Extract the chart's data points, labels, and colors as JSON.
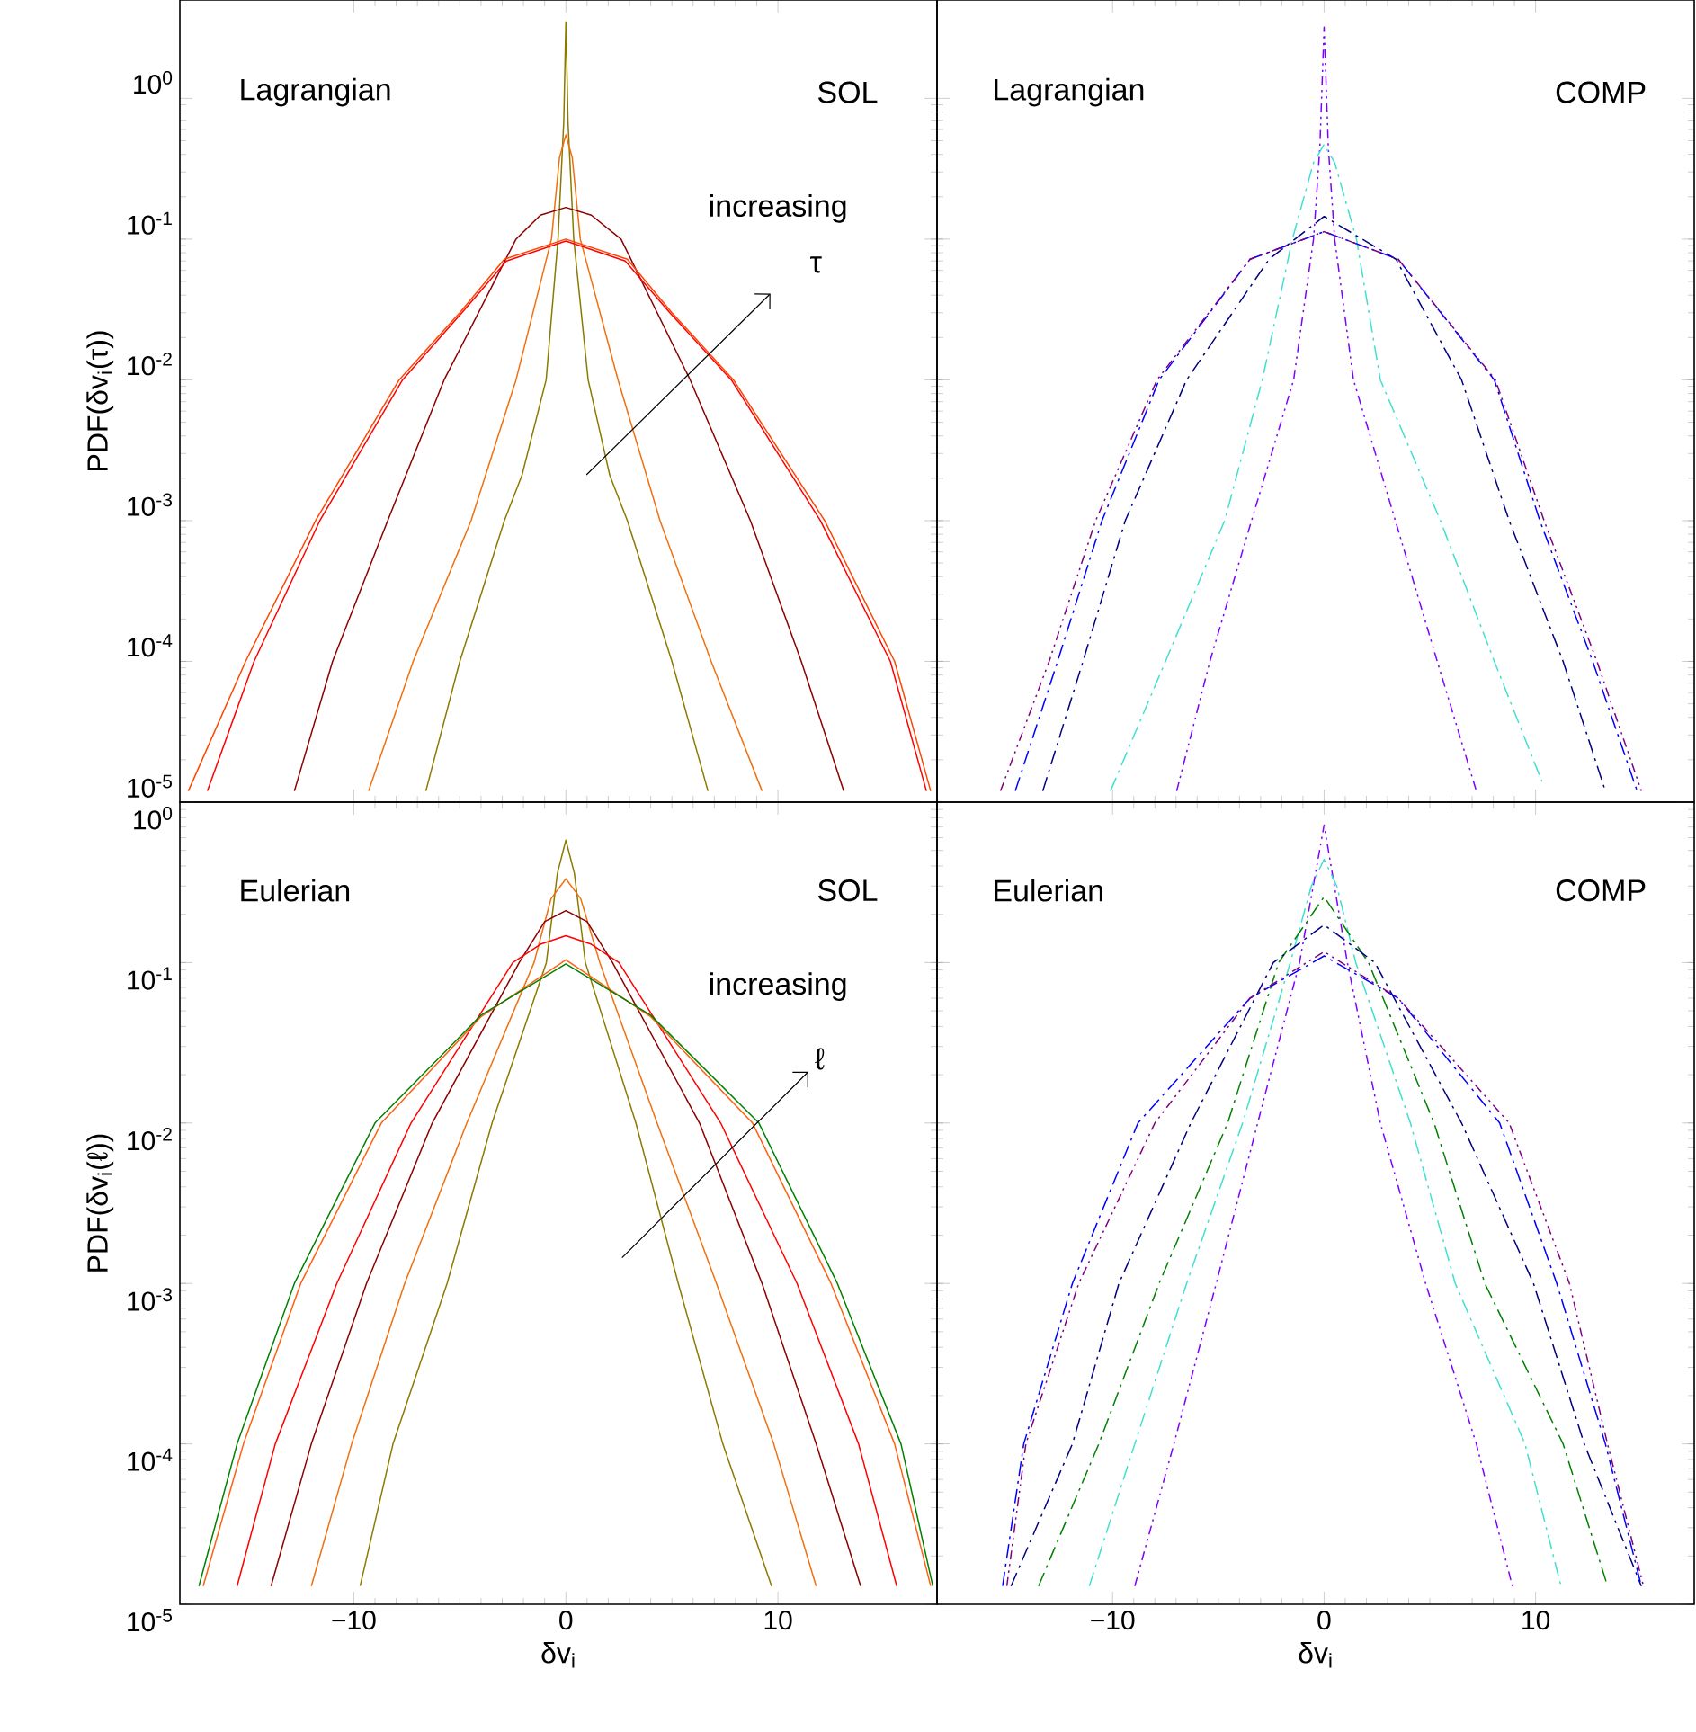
{
  "chart_data": [
    {
      "type": "line",
      "log": "y",
      "xlim": [
        -18.2,
        17.5
      ],
      "ylim": [
        1e-05,
        5
      ],
      "xticks": [
        -10,
        0,
        10
      ],
      "yticks": [
        {
          "value": 1e-05,
          "label": "10$^{-5}$"
        },
        {
          "value": 0.0001,
          "label": "10$^{-4}$"
        },
        {
          "value": 0.001,
          "label": "10$^{-3}$"
        },
        {
          "value": 0.01,
          "label": "10$^{-2}$"
        },
        {
          "value": 0.1,
          "label": "10$^{-1}$"
        },
        {
          "value": 1,
          "label": "10$^{0}$"
        }
      ],
      "tick_labels": "y",
      "ylabel": "PDF(δv$_{i}$(τ))",
      "annotations": [
        "Lagrangian",
        "SOL",
        "increasing",
        "τ"
      ],
      "series": [
        {
          "color": "#8c7a00",
          "x": [
            -6.6,
            -5.0,
            -2.9,
            -2.07,
            -0.93,
            -0.37,
            -0.1,
            0,
            0.1,
            0.37,
            1.05,
            2.07,
            2.9,
            5.0,
            6.7
          ],
          "values": [
            1.2e-05,
            0.0001,
            0.001,
            0.0021,
            0.01,
            0.1,
            0.68,
            3.5,
            0.68,
            0.1,
            0.01,
            0.0021,
            0.001,
            0.0001,
            1.2e-05
          ]
        },
        {
          "color": "#f07010",
          "x": [
            -9.3,
            -7.2,
            -4.47,
            -2.35,
            -0.68,
            -0.3,
            0,
            0.3,
            0.68,
            2.46,
            4.44,
            6.85,
            9.25
          ],
          "values": [
            1.2e-05,
            0.0001,
            0.001,
            0.01,
            0.1,
            0.38,
            0.55,
            0.38,
            0.1,
            0.01,
            0.001,
            0.0001,
            1.2e-05
          ]
        },
        {
          "color": "#8b0000",
          "x": [
            -12.8,
            -11.0,
            -8.4,
            -5.74,
            -2.35,
            -1.2,
            0,
            1.2,
            2.6,
            5.86,
            8.7,
            11.1,
            13.1
          ],
          "values": [
            1.2e-05,
            0.0001,
            0.001,
            0.01,
            0.1,
            0.148,
            0.168,
            0.148,
            0.1,
            0.01,
            0.001,
            0.0001,
            1.2e-05
          ]
        },
        {
          "color": "#ff4500",
          "x": [
            -17.8,
            -15.1,
            -11.8,
            -7.86,
            -5,
            -2.9,
            0,
            2.9,
            5,
            7.9,
            12.2,
            15.5,
            17.2
          ],
          "values": [
            1.2e-05,
            0.0001,
            0.001,
            0.01,
            0.03,
            0.072,
            0.1,
            0.072,
            0.03,
            0.01,
            0.001,
            0.0001,
            1.2e-05
          ]
        },
        {
          "color": "#ff0000",
          "x": [
            -16.9,
            -14.7,
            -11.6,
            -7.7,
            -4.9,
            -2.8,
            0,
            2.8,
            4.9,
            7.8,
            12.0,
            15.3,
            17.0
          ],
          "values": [
            1.2e-05,
            0.0001,
            0.001,
            0.01,
            0.03,
            0.07,
            0.097,
            0.07,
            0.03,
            0.01,
            0.001,
            0.0001,
            1.2e-05
          ]
        }
      ]
    },
    {
      "type": "line",
      "log": "y",
      "xlim": [
        -18.3,
        17.5
      ],
      "ylim": [
        1e-05,
        5
      ],
      "xticks": [
        -10,
        0,
        10
      ],
      "yticks": [
        1e-05,
        0.0001,
        0.001,
        0.01,
        0.1,
        1
      ],
      "tick_labels": false,
      "annotations": [
        "Lagrangian",
        "COMP"
      ],
      "series": [
        {
          "color": "#8000ff",
          "line_style": "dotted",
          "x": [
            -6.97,
            -5.4,
            -3.43,
            -1.44,
            -0.5,
            -0.2,
            0,
            0.2,
            0.5,
            1.39,
            3.37,
            5.35,
            7.2
          ],
          "values": [
            1.2e-05,
            0.0001,
            0.001,
            0.01,
            0.1,
            0.45,
            3.2,
            0.45,
            0.1,
            0.01,
            0.001,
            0.0001,
            1.2e-05
          ]
        },
        {
          "color": "#40e0d0",
          "line_style": "dashed",
          "x": [
            -10.1,
            -7.5,
            -4.7,
            -2.92,
            -1.5,
            -0.5,
            0,
            0.5,
            1.53,
            2.66,
            5.5,
            8.05,
            10.3
          ],
          "values": [
            1.2e-05,
            0.0001,
            0.001,
            0.01,
            0.1,
            0.35,
            0.47,
            0.35,
            0.1,
            0.01,
            0.001,
            0.0001,
            1.4e-05
          ]
        },
        {
          "color": "#000080",
          "line_style": "dashed",
          "x": [
            -13.3,
            -11.4,
            -9.4,
            -6.5,
            -2.6,
            0,
            3.4,
            6.5,
            8.75,
            11.3,
            13.3
          ],
          "values": [
            1.2e-05,
            0.0001,
            0.001,
            0.01,
            0.072,
            0.145,
            0.072,
            0.01,
            0.001,
            0.0001,
            1.2e-05
          ]
        },
        {
          "color": "#0000ff",
          "line_style": "dashed",
          "x": [
            -14.6,
            -12.6,
            -10.5,
            -7.8,
            -3.5,
            0,
            3.5,
            8.05,
            10.2,
            12.7,
            14.8
          ],
          "values": [
            1.2e-05,
            0.0001,
            0.001,
            0.01,
            0.072,
            0.113,
            0.072,
            0.01,
            0.001,
            0.0001,
            1.2e-05
          ]
        },
        {
          "color": "#800080",
          "line_style": "dotted",
          "x": [
            -15.3,
            -13.0,
            -10.8,
            -7.9,
            -3.5,
            0,
            3.5,
            8.1,
            10.4,
            12.9,
            15.0
          ],
          "values": [
            1.2e-05,
            0.0001,
            0.001,
            0.01,
            0.072,
            0.113,
            0.072,
            0.01,
            0.001,
            0.0001,
            1.2e-05
          ]
        }
      ]
    },
    {
      "type": "line",
      "log": "y",
      "xlim": [
        -18.2,
        17.5
      ],
      "ylim": [
        1e-05,
        1
      ],
      "xticks": [
        {
          "value": -10,
          "label": "−10"
        },
        0,
        10
      ],
      "yticks": [
        {
          "value": 1e-05,
          "label": "10$^{-5}$"
        },
        {
          "value": 0.0001,
          "label": "10$^{-4}$"
        },
        {
          "value": 0.001,
          "label": "10$^{-3}$"
        },
        {
          "value": 0.01,
          "label": "10$^{-2}$"
        },
        {
          "value": 0.1,
          "label": "10$^{-1}$"
        },
        {
          "value": 1,
          "label": "10$^{0}$"
        }
      ],
      "xlabel": "δv$_{i}$",
      "ylabel": "PDF(δv$_{i}$(ℓ))",
      "annotations": [
        "Eulerian",
        "SOL",
        "increasing",
        "ℓ"
      ],
      "series": [
        {
          "color": "#8c7a00",
          "x": [
            -9.7,
            -8.15,
            -5.6,
            -3.48,
            -0.92,
            -0.4,
            0,
            0.4,
            0.92,
            3.3,
            5.3,
            7.4,
            9.7
          ],
          "values": [
            1.3e-05,
            0.0001,
            0.001,
            0.01,
            0.1,
            0.36,
            0.58,
            0.36,
            0.1,
            0.01,
            0.001,
            0.0001,
            1.3e-05
          ]
        },
        {
          "color": "#f07010",
          "x": [
            -12.0,
            -10.1,
            -7.6,
            -4.67,
            -1.5,
            -0.7,
            0,
            0.7,
            1.6,
            4.3,
            7.1,
            9.8,
            11.8
          ],
          "values": [
            1.3e-05,
            0.0001,
            0.001,
            0.01,
            0.1,
            0.25,
            0.333,
            0.25,
            0.1,
            0.01,
            0.001,
            0.0001,
            1.3e-05
          ]
        },
        {
          "color": "#8b0000",
          "x": [
            -13.9,
            -12.0,
            -9.4,
            -6.3,
            -2.2,
            -1,
            0,
            1,
            2.2,
            6.3,
            9.25,
            11.8,
            13.9
          ],
          "values": [
            1.3e-05,
            0.0001,
            0.001,
            0.01,
            0.1,
            0.18,
            0.211,
            0.18,
            0.1,
            0.01,
            0.001,
            0.0001,
            1.3e-05
          ]
        },
        {
          "color": "#ff0000",
          "x": [
            -15.5,
            -13.7,
            -10.8,
            -7.3,
            -2.5,
            -1.2,
            0,
            1.2,
            2.5,
            7.3,
            10.9,
            13.8,
            15.6
          ],
          "values": [
            1.3e-05,
            0.0001,
            0.001,
            0.01,
            0.1,
            0.13,
            0.147,
            0.13,
            0.1,
            0.01,
            0.001,
            0.0001,
            1.3e-05
          ]
        },
        {
          "color": "#ff6010",
          "x": [
            -17.1,
            -15.2,
            -12.5,
            -8.7,
            -4,
            0,
            4,
            8.8,
            12.5,
            15.5,
            17.2
          ],
          "values": [
            1.3e-05,
            0.0001,
            0.001,
            0.01,
            0.046,
            0.104,
            0.046,
            0.01,
            0.001,
            0.0001,
            1.3e-05
          ]
        },
        {
          "color": "#008000",
          "x": [
            -17.3,
            -15.5,
            -12.8,
            -9.0,
            -4,
            0,
            4,
            9.1,
            12.8,
            15.8,
            17.3
          ],
          "values": [
            1.3e-05,
            0.0001,
            0.001,
            0.01,
            0.047,
            0.098,
            0.047,
            0.01,
            0.001,
            0.0001,
            1.3e-05
          ]
        }
      ]
    },
    {
      "type": "line",
      "log": "y",
      "xlim": [
        -18.3,
        17.5
      ],
      "ylim": [
        1e-05,
        1
      ],
      "xticks": [
        {
          "value": -10,
          "label": "−10"
        },
        0,
        10
      ],
      "yticks": [
        1e-05,
        0.0001,
        0.001,
        0.01,
        0.1,
        1
      ],
      "tick_labels": "x",
      "xlabel": "δv$_{i}$",
      "annotations": [
        "Eulerian",
        "COMP"
      ],
      "series": [
        {
          "color": "#8000ff",
          "line_style": "dotted",
          "x": [
            -8.95,
            -7.1,
            -5.1,
            -3.14,
            -1.16,
            0,
            1.1,
            2.66,
            4.8,
            7.2,
            8.9
          ],
          "values": [
            1.3e-05,
            0.0001,
            0.001,
            0.01,
            0.1,
            0.72,
            0.1,
            0.01,
            0.001,
            0.0001,
            1.3e-05
          ]
        },
        {
          "color": "#40e0d0",
          "line_style": "dashed",
          "x": [
            -11.1,
            -8.95,
            -6.5,
            -3.85,
            -1.6,
            -0.6,
            0,
            0.6,
            1.5,
            4.08,
            6.2,
            9.5,
            11.2
          ],
          "values": [
            1.3e-05,
            0.0001,
            0.001,
            0.01,
            0.1,
            0.3,
            0.44,
            0.3,
            0.1,
            0.01,
            0.001,
            0.0001,
            1.3e-05
          ]
        },
        {
          "color": "#008000",
          "line_style": "dashed",
          "x": [
            -13.5,
            -10.65,
            -7.8,
            -4.56,
            -2.15,
            0,
            2.1,
            5.2,
            7.6,
            11.3,
            13.4
          ],
          "values": [
            1.3e-05,
            0.0001,
            0.001,
            0.01,
            0.1,
            0.257,
            0.1,
            0.01,
            0.001,
            0.0001,
            1.3e-05
          ]
        },
        {
          "color": "#000080",
          "line_style": "dashed",
          "x": [
            -14.8,
            -11.9,
            -9.7,
            -6.3,
            -2.4,
            0,
            2.4,
            6.5,
            9.9,
            12.3,
            15.0
          ],
          "values": [
            1.3e-05,
            0.0001,
            0.001,
            0.01,
            0.1,
            0.172,
            0.1,
            0.01,
            0.001,
            0.0001,
            1.3e-05
          ]
        },
        {
          "color": "#0000ff",
          "line_style": "dashed",
          "x": [
            -15.2,
            -14.2,
            -11.9,
            -8.8,
            -3.5,
            0,
            3.5,
            8.3,
            11.0,
            13.3,
            15.0
          ],
          "values": [
            1.3e-05,
            0.0001,
            0.001,
            0.01,
            0.06,
            0.11,
            0.06,
            0.01,
            0.001,
            0.0001,
            1.3e-05
          ]
        },
        {
          "color": "#800080",
          "line_style": "dotted",
          "x": [
            -15.0,
            -14.1,
            -11.6,
            -8.0,
            -3.5,
            0,
            3.5,
            8.75,
            11.6,
            13.4,
            15.1
          ],
          "values": [
            1.3e-05,
            0.0001,
            0.001,
            0.01,
            0.06,
            0.117,
            0.06,
            0.01,
            0.001,
            0.0001,
            1.3e-05
          ]
        }
      ]
    }
  ]
}
